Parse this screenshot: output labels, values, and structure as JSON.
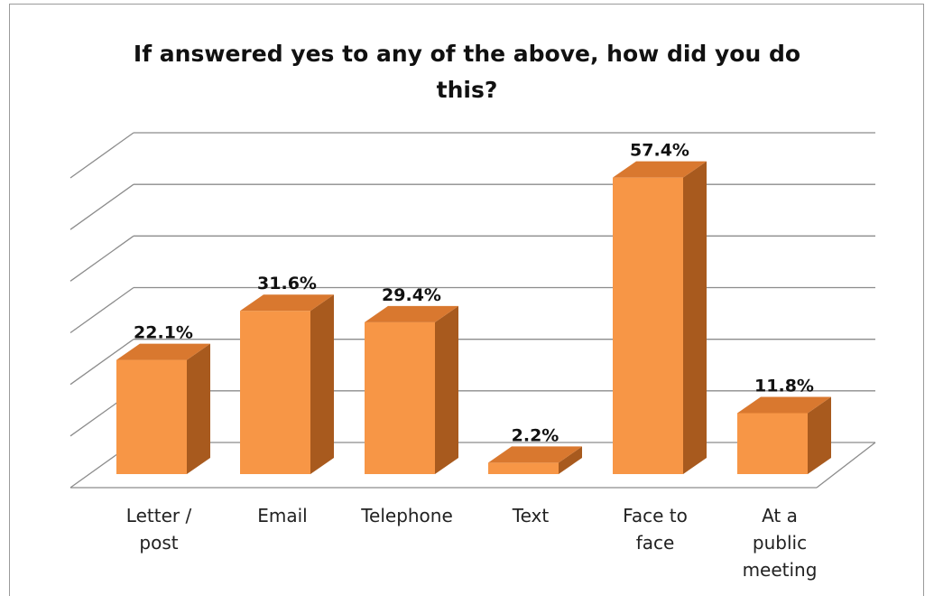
{
  "chart_data": {
    "type": "bar",
    "title": "If answered yes to any of the above, how did you do this?",
    "categories": [
      "Letter / post",
      "Email",
      "Telephone",
      "Text",
      "Face to face",
      "At a public meeting"
    ],
    "category_lines": [
      [
        "Letter /",
        "post"
      ],
      [
        "Email"
      ],
      [
        "Telephone"
      ],
      [
        "Text"
      ],
      [
        "Face to",
        "face"
      ],
      [
        "At a",
        "public",
        "meeting"
      ]
    ],
    "values": [
      22.1,
      31.6,
      29.4,
      2.2,
      57.4,
      11.8
    ],
    "data_labels": [
      "22.1%",
      "31.6%",
      "29.4%",
      "2.2%",
      "57.4%",
      "11.8%"
    ],
    "ylim": [
      0,
      70
    ],
    "grid": true,
    "style": "3d-column",
    "colors": {
      "front": "#F79646",
      "side": "#A85A1E",
      "top": "#D9782F"
    }
  }
}
